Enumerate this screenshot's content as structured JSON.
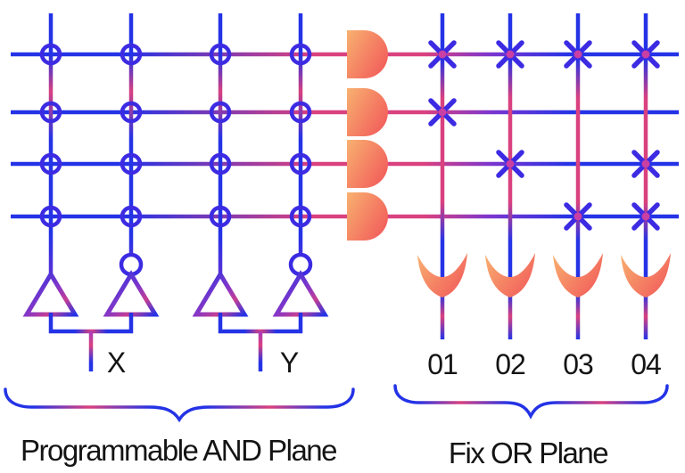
{
  "diagram": {
    "and_plane": {
      "caption": "Programmable AND Plane",
      "inputs": [
        {
          "label": "X",
          "drivers": [
            "buffer",
            "inverter"
          ]
        },
        {
          "label": "Y",
          "drivers": [
            "buffer",
            "inverter"
          ]
        }
      ],
      "product_rows": 4,
      "input_columns": 4,
      "connection_symbol": "circle-plus",
      "connections": [
        [
          1,
          1,
          1,
          1
        ],
        [
          1,
          1,
          1,
          1
        ],
        [
          1,
          1,
          1,
          1
        ],
        [
          1,
          1,
          1,
          1
        ]
      ]
    },
    "or_plane": {
      "caption": "Fix OR Plane",
      "outputs": [
        "01",
        "02",
        "03",
        "04"
      ],
      "connection_symbol": "x-cross",
      "connections": [
        [
          1,
          1,
          1,
          1
        ],
        [
          1,
          0,
          0,
          0
        ],
        [
          0,
          1,
          0,
          1
        ],
        [
          0,
          0,
          1,
          1
        ]
      ]
    },
    "and_gate_count": 4,
    "or_gate_count": 4
  },
  "colors": {
    "line_blue": "#2433e6",
    "line_violet": "#7a35cf",
    "line_magenta": "#d9417f",
    "symbol_blue": "#3c2be2",
    "mark_pink": "#c93fa4",
    "gate_orange_light": "#f8b170",
    "gate_orange_deep": "#f25f5b",
    "label_text": "#141414"
  }
}
